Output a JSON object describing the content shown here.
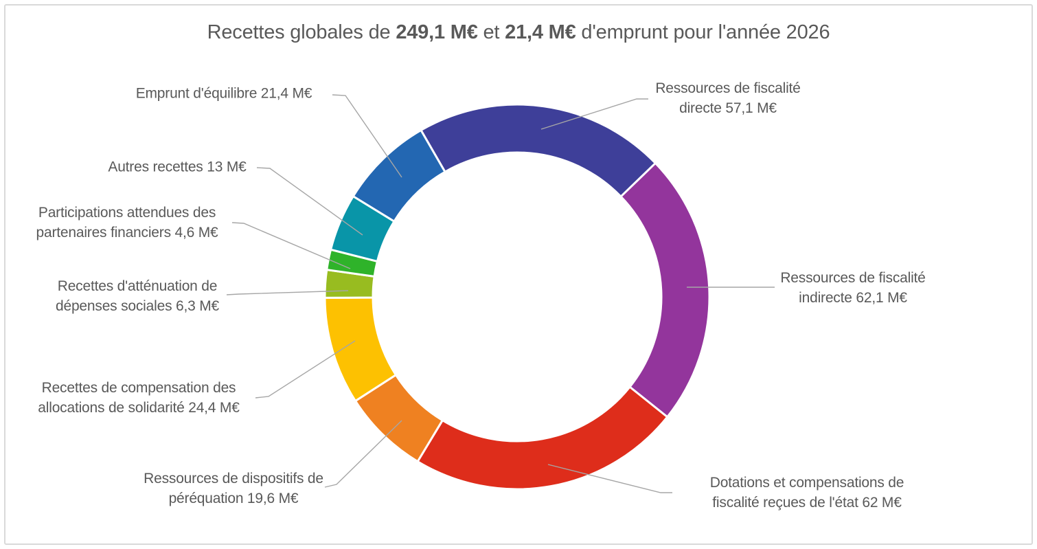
{
  "title": {
    "part1": "Recettes globales de ",
    "amount1": "249,1 M€",
    "part2": " et ",
    "amount2": "21,4 M€",
    "part3": " d'emprunt pour l'année 2026"
  },
  "chart_data": {
    "type": "pie",
    "subtype": "donut",
    "title": "Recettes globales de 249,1 M€ et 21,4 M€ d'emprunt pour l'année 2026",
    "unit": "M€",
    "start_angle_deg": -30,
    "direction": "clockwise",
    "hole_ratio": 0.75,
    "legend": "none",
    "segments": [
      {
        "name": "fiscalite-directe",
        "label": "Ressources de fiscalité\ndirecte 57,1 M€",
        "value": 57.1,
        "color": "#3E3F99"
      },
      {
        "name": "fiscalite-indirecte",
        "label": "Ressources de fiscalité\nindirecte 62,1 M€",
        "value": 62.1,
        "color": "#93359C"
      },
      {
        "name": "dotations-compensations-etat",
        "label": "Dotations et compensations de\nfiscalité reçues de l'état 62 M€",
        "value": 62,
        "color": "#DE2D1B"
      },
      {
        "name": "dispositifs-perequation",
        "label": "Ressources de dispositifs de\npéréquation 19,6 M€",
        "value": 19.6,
        "color": "#EF8121"
      },
      {
        "name": "compensation-allocations-solidarite",
        "label": "Recettes de compensation des\nallocations de solidarité 24,4 M€",
        "value": 24.4,
        "color": "#FDC101"
      },
      {
        "name": "attenuation-depenses-sociales",
        "label": "Recettes d'atténuation de\ndépenses sociales 6,3 M€",
        "value": 6.3,
        "color": "#98BC20"
      },
      {
        "name": "participations-partenaires",
        "label": "Participations attendues des\npartenaires financiers 4,6 M€",
        "value": 4.6,
        "color": "#2FB32A"
      },
      {
        "name": "autres-recettes",
        "label": "Autres recettes 13 M€",
        "value": 13,
        "color": "#0995A8"
      },
      {
        "name": "emprunt-equilibre",
        "label": "Emprunt d'équilibre 21,4 M€",
        "value": 21.4,
        "color": "#2367B2"
      }
    ],
    "colors": {
      "label_text": "#595959",
      "leader_line": "#A6A6A6",
      "frame_border": "#D9D9D9",
      "separator": "#FFFFFF"
    }
  }
}
